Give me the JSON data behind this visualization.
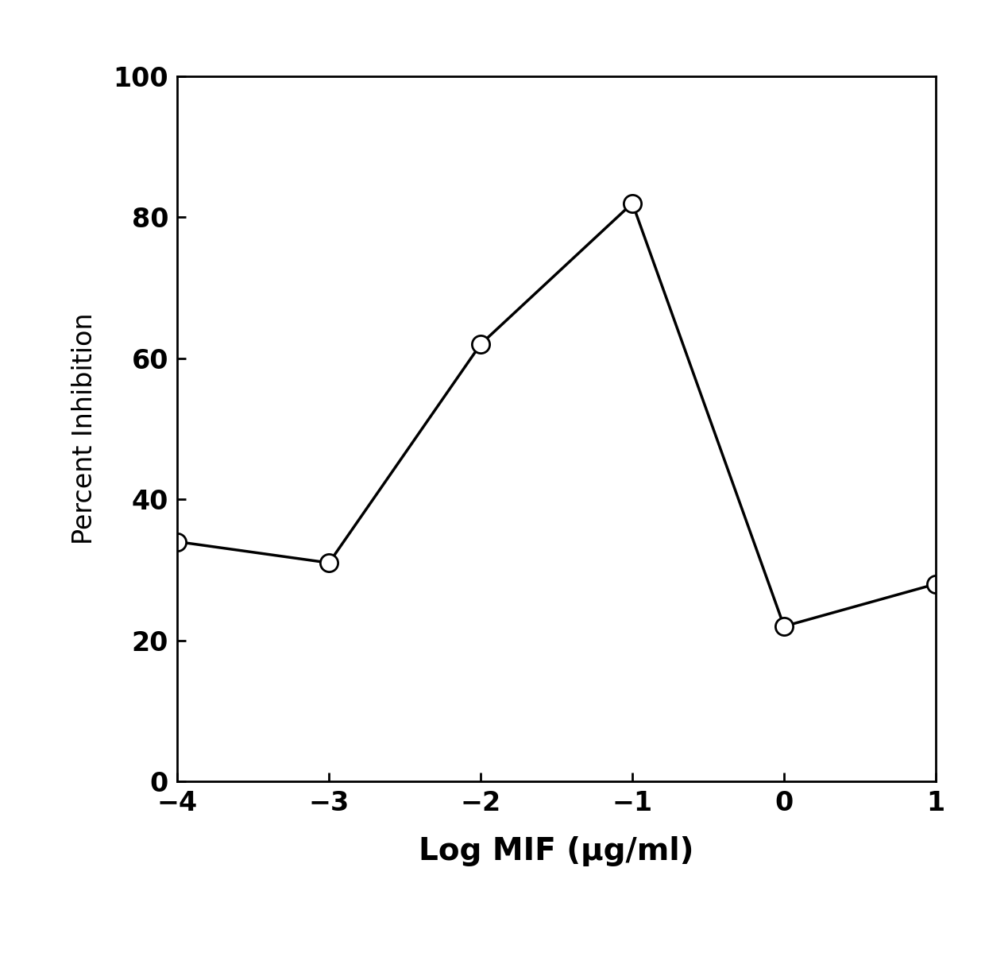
{
  "x": [
    -4,
    -3,
    -2,
    -1,
    0,
    1
  ],
  "y": [
    34,
    31,
    62,
    82,
    22,
    28
  ],
  "xlabel": "Log MIF (μg/ml)",
  "ylabel": "Percent Inhibition",
  "xlim": [
    -4,
    1
  ],
  "ylim": [
    0,
    100
  ],
  "xticks": [
    -4,
    -3,
    -2,
    -1,
    0,
    1
  ],
  "yticks": [
    0,
    20,
    40,
    60,
    80,
    100
  ],
  "xtick_labels": [
    "−4",
    "−3",
    "−2",
    "−1",
    "0",
    "1"
  ],
  "ytick_labels": [
    "0",
    "20",
    "40",
    "60",
    "80",
    "100"
  ],
  "line_color": "#000000",
  "marker_facecolor": "#ffffff",
  "marker_edgecolor": "#000000",
  "marker_size": 16,
  "line_width": 2.5,
  "marker_edge_width": 2.0,
  "background_color": "#ffffff",
  "xlabel_fontsize": 28,
  "ylabel_fontsize": 24,
  "tick_fontsize": 24,
  "xlabel_fontweight": "bold"
}
